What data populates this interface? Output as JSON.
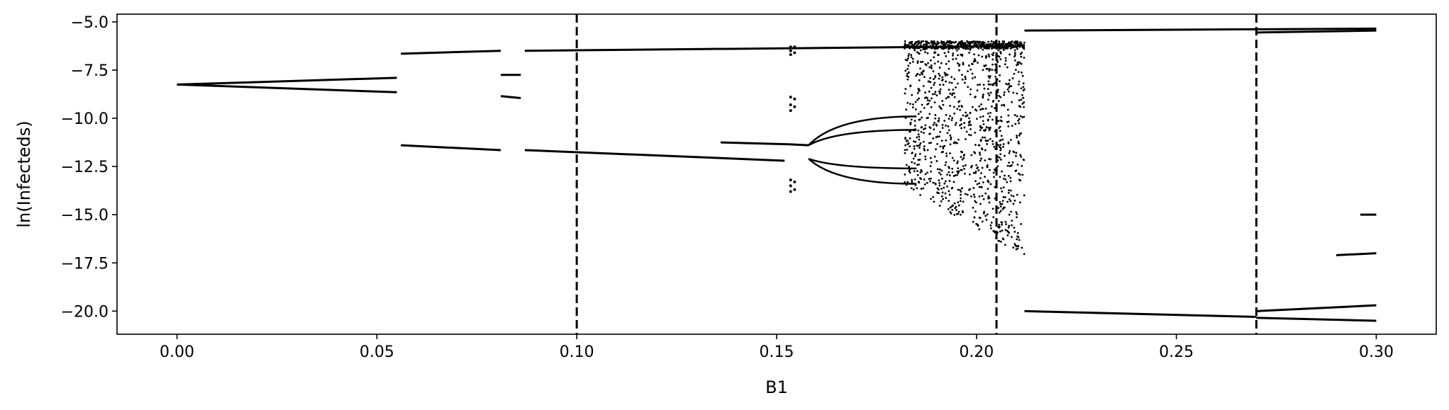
{
  "chart_data": {
    "type": "scatter",
    "title": "",
    "xlabel": "B1",
    "ylabel": "ln(Infecteds)",
    "xlim": [
      -0.015,
      0.315
    ],
    "ylim": [
      -21.2,
      -4.6
    ],
    "xticks": [
      0.0,
      0.05,
      0.1,
      0.15,
      0.2,
      0.25,
      0.3
    ],
    "xtick_labels": [
      "0.00",
      "0.05",
      "0.10",
      "0.15",
      "0.20",
      "0.25",
      "0.30"
    ],
    "yticks": [
      -5.0,
      -7.5,
      -10.0,
      -12.5,
      -15.0,
      -17.5,
      -20.0
    ],
    "ytick_labels": [
      "−5.0",
      "−7.5",
      "−10.0",
      "−12.5",
      "−15.0",
      "−17.5",
      "−20.0"
    ],
    "grid": false,
    "vlines": [
      0.1,
      0.205,
      0.27
    ],
    "vline_style": "dashed",
    "marker_color": "#000000",
    "branches": [
      {
        "x": [
          0.0,
          0.055
        ],
        "y": [
          -8.25,
          -7.9
        ]
      },
      {
        "x": [
          0.0,
          0.055
        ],
        "y": [
          -8.25,
          -8.65
        ]
      },
      {
        "x": [
          0.056,
          0.081
        ],
        "y": [
          -6.65,
          -6.5
        ]
      },
      {
        "x": [
          0.056,
          0.081
        ],
        "y": [
          -11.4,
          -11.65
        ]
      },
      {
        "x": [
          0.081,
          0.086
        ],
        "y": [
          -7.75,
          -7.75
        ]
      },
      {
        "x": [
          0.081,
          0.086
        ],
        "y": [
          -8.85,
          -8.95
        ]
      },
      {
        "x": [
          0.087,
          0.212
        ],
        "y": [
          -6.5,
          -6.25
        ]
      },
      {
        "x": [
          0.087,
          0.152
        ],
        "y": [
          -11.65,
          -12.2
        ]
      },
      {
        "x": [
          0.136,
          0.153
        ],
        "y": [
          -11.25,
          -11.35
        ]
      },
      {
        "x": [
          0.212,
          0.3
        ],
        "y": [
          -5.45,
          -5.35
        ]
      },
      {
        "x": [
          0.27,
          0.3
        ],
        "y": [
          -5.55,
          -5.45
        ]
      },
      {
        "x": [
          0.212,
          0.27
        ],
        "y": [
          -20.0,
          -20.3
        ]
      },
      {
        "x": [
          0.27,
          0.3
        ],
        "y": [
          -20.0,
          -19.7
        ]
      },
      {
        "x": [
          0.27,
          0.3
        ],
        "y": [
          -20.35,
          -20.5
        ]
      },
      {
        "x": [
          0.29,
          0.3
        ],
        "y": [
          -17.1,
          -17.0
        ]
      },
      {
        "x": [
          0.296,
          0.3
        ],
        "y": [
          -15.0,
          -15.0
        ]
      }
    ],
    "clusters": [
      {
        "x": 0.1535,
        "y": [
          -6.3,
          -6.5,
          -6.7,
          -8.9,
          -9.3,
          -9.6,
          -13.2,
          -13.5,
          -13.8
        ]
      },
      {
        "x": 0.1545,
        "y": [
          -6.3,
          -6.6,
          -9.0,
          -9.4,
          -13.3,
          -13.7
        ]
      }
    ],
    "bifurcation": {
      "stem": {
        "x": [
          0.153,
          0.158
        ],
        "y": [
          -11.35,
          -11.4
        ]
      },
      "split_x": 0.158,
      "end_x": 0.185,
      "branches": [
        {
          "start": -11.4,
          "end": -9.9
        },
        {
          "start": -11.4,
          "end": -10.6
        },
        {
          "start": -12.1,
          "end": -12.6
        },
        {
          "start": -12.1,
          "end": -13.4
        }
      ]
    },
    "chaos_region": {
      "x_range": [
        0.182,
        0.212
      ],
      "upper_band": [
        -6.4,
        -6.0
      ],
      "lower_edge_at_start": -13.5,
      "lower_edge_at_end": -17.2
    }
  }
}
